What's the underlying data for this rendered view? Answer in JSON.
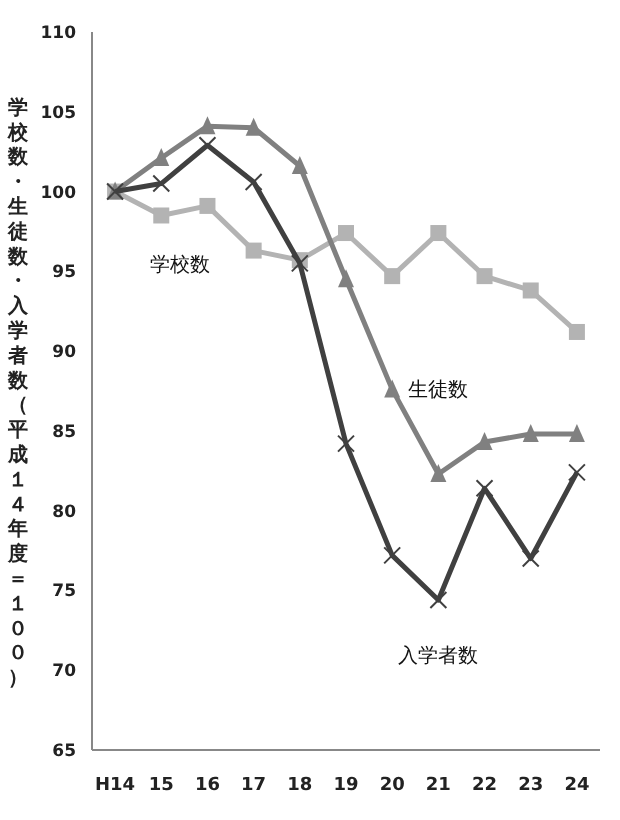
{
  "chart_data": {
    "type": "line",
    "ylabel": "学校数・生徒数・入学者数（平成１４年度＝１００）",
    "categories": [
      "H14",
      "15",
      "16",
      "17",
      "18",
      "19",
      "20",
      "21",
      "22",
      "23",
      "24"
    ],
    "series": [
      {
        "name": "学校数",
        "color": "#b3b3b3",
        "marker": "square",
        "values": [
          100,
          98.5,
          99.1,
          96.3,
          95.7,
          97.4,
          94.7,
          97.4,
          94.7,
          93.8,
          91.2
        ]
      },
      {
        "name": "生徒数",
        "color": "#808080",
        "marker": "triangle",
        "values": [
          100,
          102.1,
          104.1,
          104.0,
          101.6,
          94.5,
          87.6,
          82.3,
          84.3,
          84.8,
          84.8
        ]
      },
      {
        "name": "入学者数",
        "color": "#404040",
        "marker": "cross",
        "values": [
          100,
          100.5,
          102.9,
          100.6,
          95.5,
          84.2,
          77.2,
          74.4,
          81.4,
          77.0,
          82.4
        ]
      }
    ],
    "ylim": [
      65,
      110
    ],
    "yticks": [
      65,
      70,
      75,
      80,
      85,
      90,
      95,
      100,
      105,
      110
    ],
    "grid": false
  }
}
